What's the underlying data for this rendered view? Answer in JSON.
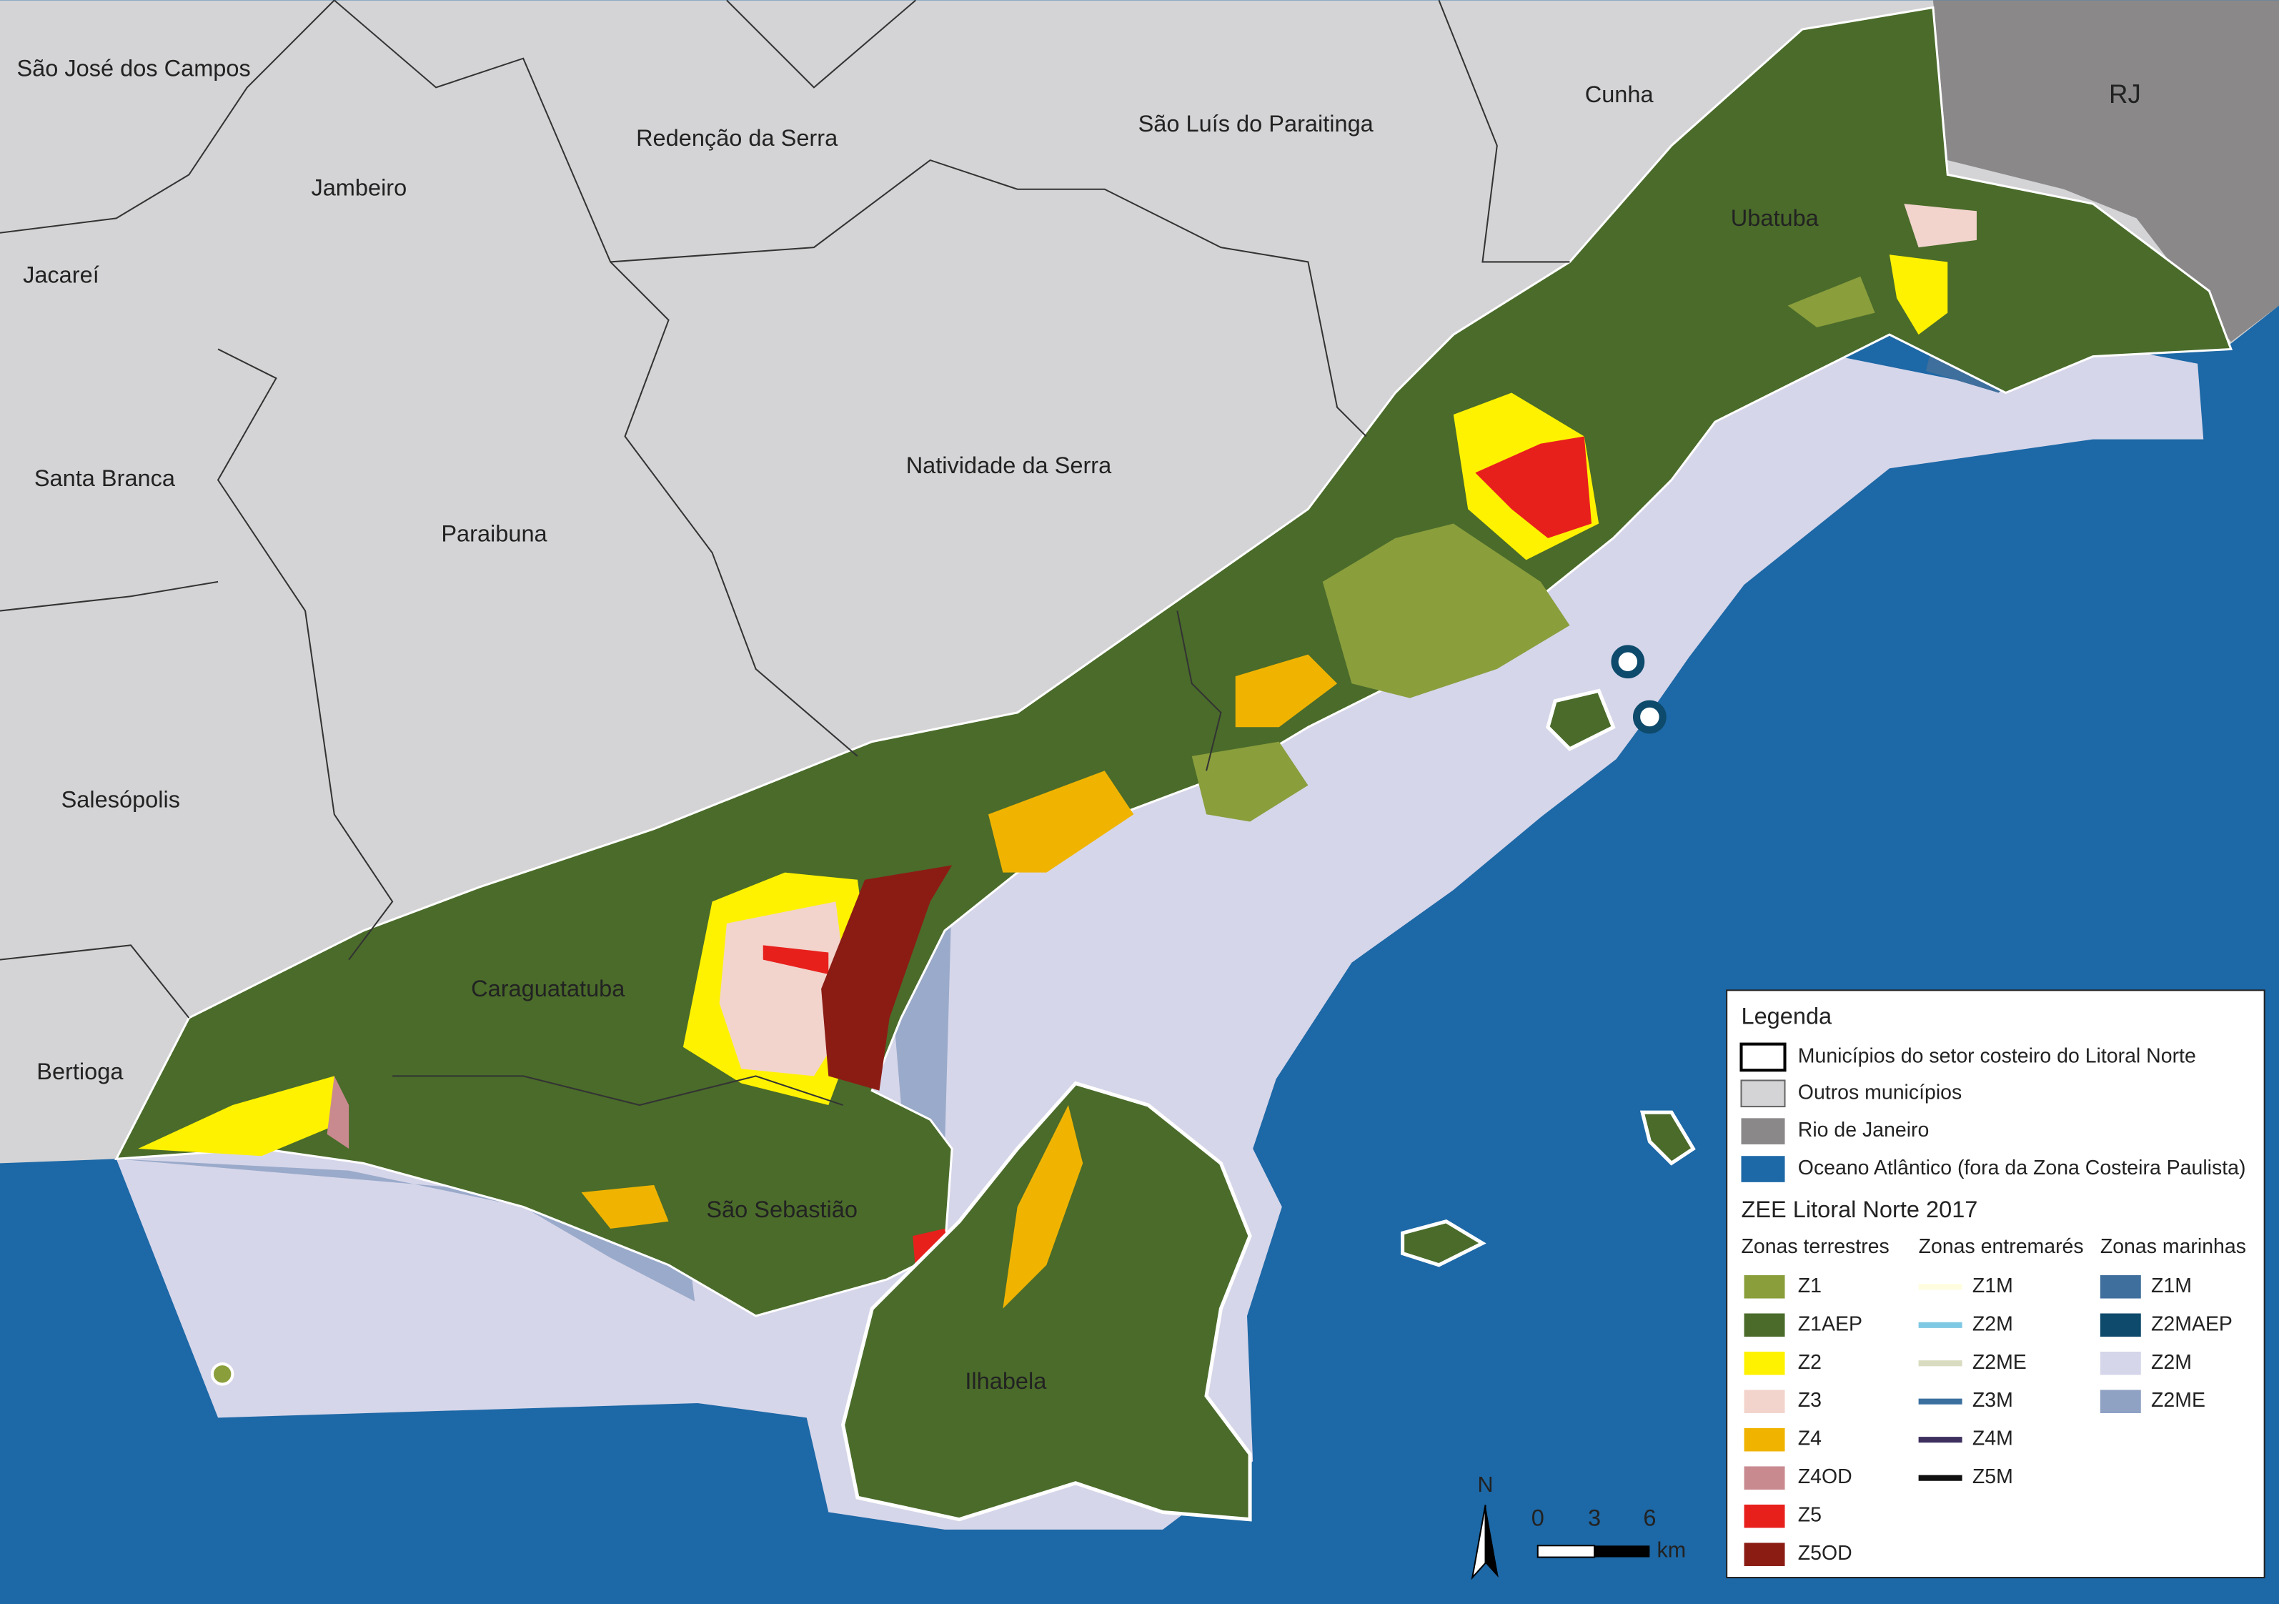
{
  "map_labels": [
    "São José dos Campos",
    "Jambeiro",
    "Redenção da Serra",
    "São Luís do Paraitinga",
    "Cunha",
    "RJ",
    "Ubatuba",
    "Jacareí",
    "Santa Branca",
    "Paraibuna",
    "Natividade da Serra",
    "Salesópolis",
    "Caraguatatuba",
    "Bertioga",
    "São Sebastião",
    "Ilhabela"
  ],
  "legend": {
    "title": "Legenda",
    "items": [
      "Municípios do setor costeiro do Litoral Norte",
      "Outros municípios",
      "Rio de Janeiro",
      "Oceano Atlântico (fora da Zona Costeira Paulista)"
    ],
    "zee_title": "ZEE Litoral Norte 2017",
    "terrestrial": {
      "heading": "Zonas terrestres",
      "items": [
        "Z1",
        "Z1AEP",
        "Z2",
        "Z3",
        "Z4",
        "Z4OD",
        "Z5",
        "Z5OD"
      ]
    },
    "intertidal": {
      "heading": "Zonas entremarés",
      "items": [
        "Z1M",
        "Z2M",
        "Z2ME",
        "Z3M",
        "Z4M",
        "Z5M"
      ]
    },
    "marine": {
      "heading": "Zonas marinhas",
      "items": [
        "Z1M",
        "Z2MAEP",
        "Z2M",
        "Z2ME"
      ]
    }
  },
  "scale": {
    "ticks": [
      0,
      3,
      6
    ],
    "unit": "km"
  },
  "north": "N"
}
